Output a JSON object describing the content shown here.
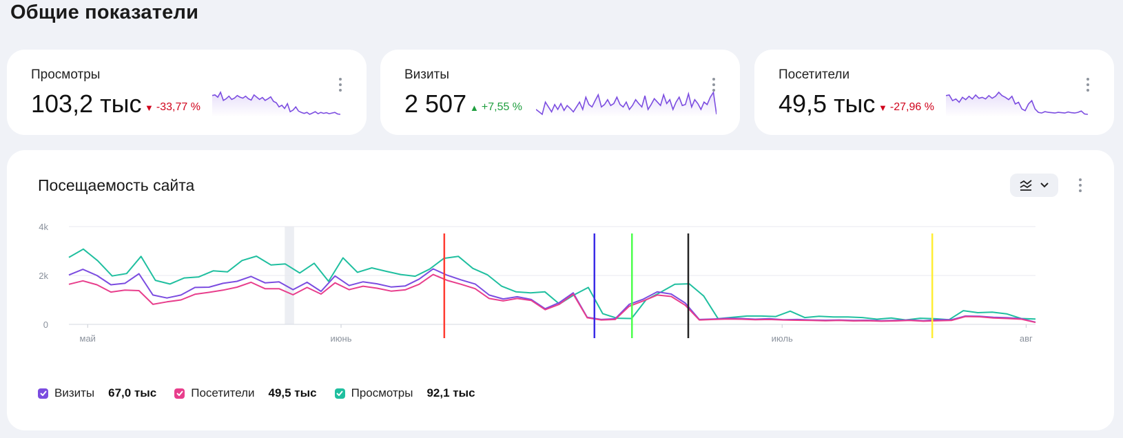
{
  "page": {
    "title": "Общие показатели"
  },
  "cards": [
    {
      "title": "Просмотры",
      "value": "103,2 тыс",
      "delta": "-33,77 %",
      "direction": "down",
      "spark": [
        60,
        62,
        55,
        70,
        45,
        50,
        58,
        48,
        52,
        60,
        55,
        52,
        58,
        50,
        46,
        62,
        55,
        48,
        54,
        45,
        50,
        56,
        42,
        38,
        25,
        30,
        20,
        35,
        10,
        15,
        25,
        12,
        8,
        5,
        8,
        2,
        6,
        10,
        4,
        8,
        5,
        7,
        4,
        6,
        8,
        3,
        2
      ]
    },
    {
      "title": "Визиты",
      "value": "2 507",
      "delta": "+7,55 %",
      "direction": "up",
      "spark": [
        30,
        25,
        20,
        45,
        35,
        25,
        40,
        30,
        42,
        28,
        38,
        32,
        25,
        35,
        45,
        30,
        55,
        40,
        35,
        48,
        60,
        35,
        40,
        50,
        38,
        42,
        55,
        40,
        35,
        45,
        30,
        38,
        50,
        42,
        35,
        58,
        30,
        40,
        52,
        45,
        38,
        60,
        42,
        50,
        30,
        45,
        55,
        38,
        40,
        62,
        35,
        50,
        42,
        30,
        45,
        40,
        55,
        65,
        20
      ]
    },
    {
      "title": "Посетители",
      "value": "49,5 тыс",
      "delta": "-27,96 %",
      "direction": "down",
      "spark": [
        60,
        62,
        45,
        50,
        40,
        55,
        48,
        58,
        50,
        62,
        52,
        55,
        50,
        60,
        52,
        58,
        70,
        60,
        55,
        48,
        58,
        35,
        40,
        20,
        15,
        35,
        45,
        20,
        10,
        8,
        12,
        10,
        9,
        8,
        10,
        9,
        8,
        11,
        9,
        8,
        10,
        14,
        5,
        4
      ]
    }
  ],
  "chart": {
    "title": "Посещаемость сайта"
  },
  "chart_data": {
    "type": "line",
    "y_ticks": [
      "4k",
      "2k",
      "0"
    ],
    "ylim": [
      0,
      4000
    ],
    "x_labels": [
      {
        "label": "май",
        "index": 2
      },
      {
        "label": "июнь",
        "index": 29
      },
      {
        "label": "июль",
        "index": 76
      },
      {
        "label": "авг",
        "index": 102
      }
    ],
    "x_count": 104,
    "highlight_band_indices": [
      23,
      24
    ],
    "markers": [
      {
        "index": 40,
        "color": "#ff3b30"
      },
      {
        "index": 56,
        "color": "#3a2be6"
      },
      {
        "index": 60,
        "color": "#4cff4c"
      },
      {
        "index": 66,
        "color": "#222222"
      },
      {
        "index": 92,
        "color": "#ffee33"
      }
    ],
    "series": [
      {
        "name": "Визиты",
        "color": "#7b4ce0",
        "total": "67,0 тыс",
        "values": [
          2020,
          2250,
          2000,
          1620,
          1680,
          2070,
          1200,
          1080,
          1200,
          1510,
          1520,
          1680,
          1760,
          1960,
          1700,
          1740,
          1420,
          1720,
          1350,
          1980,
          1590,
          1740,
          1660,
          1530,
          1570,
          1850,
          2270,
          2010,
          1820,
          1650,
          1200,
          1040,
          1130,
          1020,
          640,
          890,
          1290,
          290,
          200,
          230,
          820,
          1030,
          1330,
          1240,
          870,
          200,
          220,
          250,
          240,
          210,
          230,
          190,
          200,
          180,
          170,
          180,
          160,
          170,
          150,
          160,
          180,
          150,
          190,
          190,
          340,
          330,
          290,
          270,
          230,
          90
        ]
      },
      {
        "name": "Посетители",
        "color": "#e83e8c",
        "total": "49,5 тыс",
        "values": [
          1640,
          1780,
          1620,
          1320,
          1400,
          1380,
          820,
          920,
          1000,
          1230,
          1310,
          1400,
          1520,
          1720,
          1460,
          1460,
          1210,
          1510,
          1240,
          1700,
          1420,
          1560,
          1480,
          1360,
          1410,
          1640,
          2040,
          1800,
          1640,
          1460,
          1060,
          960,
          1060,
          980,
          600,
          820,
          1240,
          270,
          180,
          200,
          740,
          960,
          1200,
          1140,
          780,
          180,
          200,
          220,
          210,
          190,
          200,
          180,
          170,
          160,
          150,
          160,
          140,
          150,
          130,
          140,
          160,
          130,
          150,
          160,
          320,
          310,
          260,
          240,
          210,
          80
        ]
      },
      {
        "name": "Просмотры",
        "color": "#1fbf9f",
        "total": "92,1 тыс",
        "values": [
          2740,
          3080,
          2600,
          1980,
          2080,
          2780,
          1800,
          1650,
          1900,
          1940,
          2190,
          2150,
          2610,
          2790,
          2430,
          2470,
          2100,
          2500,
          1760,
          2720,
          2130,
          2310,
          2170,
          2040,
          1970,
          2260,
          2700,
          2780,
          2290,
          2030,
          1560,
          1330,
          1290,
          1330,
          830,
          1200,
          1510,
          440,
          250,
          240,
          1000,
          1310,
          1640,
          1660,
          1160,
          230,
          290,
          340,
          340,
          320,
          540,
          280,
          330,
          300,
          300,
          280,
          210,
          260,
          180,
          250,
          230,
          190,
          560,
          480,
          500,
          430,
          240,
          220
        ]
      }
    ]
  }
}
